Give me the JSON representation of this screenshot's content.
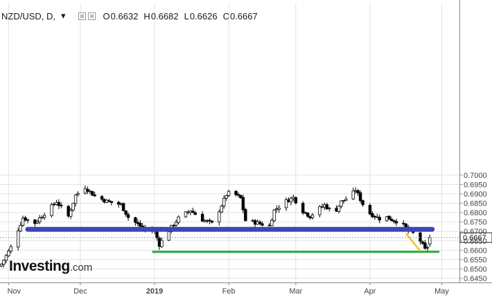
{
  "legend": {
    "symbol": "NZD/USD, D,",
    "caret": "▾",
    "open_label": "O",
    "open": "0.6632",
    "high_label": "H",
    "high": "0.6682",
    "low_label": "L",
    "low": "0.6626",
    "close_label": "C",
    "close": "0.6667"
  },
  "watermark": {
    "brand": "Investing",
    "suffix": ".com"
  },
  "price_label": "0.6667",
  "colors": {
    "up": "#ffffff",
    "down": "#000000",
    "support_line": "#3a47b8",
    "low_line": "#2aa836",
    "trend_line": "#f2c12e",
    "grid": "#e3e3e3",
    "axis": "#888888"
  },
  "chart_data": {
    "type": "candlestick",
    "symbol": "NZD/USD",
    "interval": "D",
    "ylim": [
      0.643,
      0.7025
    ],
    "y_ticks": [
      "0.7000",
      "0.6950",
      "0.6900",
      "0.6850",
      "0.6800",
      "0.6750",
      "0.6700",
      "0.6650",
      "0.6600",
      "0.6550",
      "0.6500",
      "0.6450"
    ],
    "x_ticks": [
      {
        "label": "Nov",
        "date": "2018-11-01"
      },
      {
        "label": "Dec",
        "date": "2018-12-01"
      },
      {
        "label": "2019",
        "date": "2019-01-01"
      },
      {
        "label": "Feb",
        "date": "2019-02-01"
      },
      {
        "label": "Mar",
        "date": "2019-03-01"
      },
      {
        "label": "Apr",
        "date": "2019-04-01"
      },
      {
        "label": "May",
        "date": "2019-05-01"
      }
    ],
    "last_close": 0.6667,
    "annotations": [
      {
        "type": "horizontal_band",
        "name": "support",
        "y": 0.6711,
        "x_from": "2018-11-09",
        "x_to": "2019-04-27"
      },
      {
        "type": "horizontal_line",
        "name": "low",
        "y": 0.6591,
        "x_from": "2018-12-31",
        "x_to": "2019-04-30"
      },
      {
        "type": "trend_line",
        "name": "decline",
        "x_from": "2019-04-16",
        "y_from": 0.669,
        "x_to": "2019-04-22",
        "y_to": 0.6595
      }
    ],
    "anchors": [
      [
        "2018-10-29",
        0.6525
      ],
      [
        "2018-11-02",
        0.6615
      ],
      [
        "2018-11-07",
        0.6772
      ],
      [
        "2018-11-12",
        0.6745
      ],
      [
        "2018-11-17",
        0.6808
      ],
      [
        "2018-11-21",
        0.6858
      ],
      [
        "2018-11-26",
        0.678
      ],
      [
        "2018-11-29",
        0.6892
      ],
      [
        "2018-12-03",
        0.6935
      ],
      [
        "2018-12-07",
        0.6888
      ],
      [
        "2018-12-12",
        0.686
      ],
      [
        "2018-12-18",
        0.6842
      ],
      [
        "2018-12-21",
        0.6775
      ],
      [
        "2018-12-26",
        0.6728
      ],
      [
        "2018-12-28",
        0.671
      ],
      [
        "2019-01-01",
        0.67
      ],
      [
        "2019-01-03",
        0.663
      ],
      [
        "2019-01-07",
        0.6705
      ],
      [
        "2019-01-11",
        0.677
      ],
      [
        "2019-01-16",
        0.6812
      ],
      [
        "2019-01-21",
        0.6762
      ],
      [
        "2019-01-25",
        0.6742
      ],
      [
        "2019-01-28",
        0.6812
      ],
      [
        "2019-01-31",
        0.6895
      ],
      [
        "2019-02-02",
        0.6912
      ],
      [
        "2019-02-06",
        0.6876
      ],
      [
        "2019-02-08",
        0.6758
      ],
      [
        "2019-02-13",
        0.6745
      ],
      [
        "2019-02-18",
        0.6728
      ],
      [
        "2019-02-20",
        0.6812
      ],
      [
        "2019-02-25",
        0.6862
      ],
      [
        "2019-02-28",
        0.688
      ],
      [
        "2019-03-04",
        0.6808
      ],
      [
        "2019-03-07",
        0.678
      ],
      [
        "2019-03-10",
        0.6815
      ],
      [
        "2019-03-13",
        0.684
      ],
      [
        "2019-03-17",
        0.6795
      ],
      [
        "2019-03-20",
        0.6858
      ],
      [
        "2019-03-24",
        0.6888
      ],
      [
        "2019-03-26",
        0.6922
      ],
      [
        "2019-03-29",
        0.6845
      ],
      [
        "2019-04-01",
        0.6795
      ],
      [
        "2019-04-05",
        0.6768
      ],
      [
        "2019-04-08",
        0.6775
      ],
      [
        "2019-04-11",
        0.6758
      ],
      [
        "2019-04-14",
        0.6748
      ],
      [
        "2019-04-17",
        0.6702
      ],
      [
        "2019-04-19",
        0.669
      ],
      [
        "2019-04-22",
        0.665
      ],
      [
        "2019-04-24",
        0.6602
      ],
      [
        "2019-04-26",
        0.6632
      ],
      [
        "2019-04-27",
        0.6667
      ]
    ],
    "candles_are_approximate": true
  }
}
